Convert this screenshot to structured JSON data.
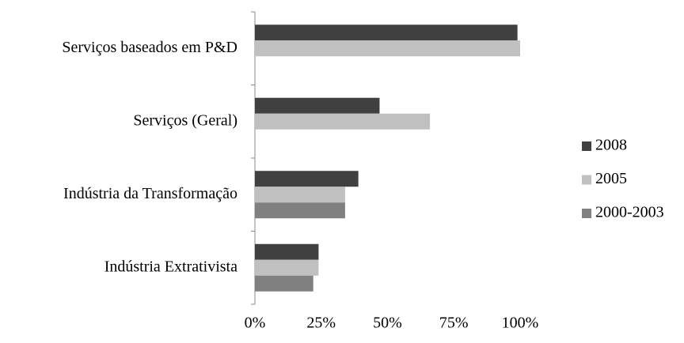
{
  "chart_data": {
    "type": "hbar",
    "categories": [
      "Serviços baseados em P&D",
      "Serviços (Geral)",
      "Indústria da Transformação",
      "Indústria Extrativista"
    ],
    "series": [
      {
        "name": "2008",
        "color": "#404040",
        "values": [
          99,
          47,
          39,
          24
        ]
      },
      {
        "name": "2005",
        "color": "#c0c0c0",
        "values": [
          100,
          66,
          34,
          24
        ]
      },
      {
        "name": "2000-2003",
        "color": "#808080",
        "values": [
          null,
          null,
          34,
          22
        ]
      }
    ],
    "xlim": [
      0,
      100
    ],
    "xticks": [
      {
        "value": 0,
        "label": "0%"
      },
      {
        "value": 25,
        "label": "25%"
      },
      {
        "value": 50,
        "label": "50%"
      },
      {
        "value": 75,
        "label": "75%"
      },
      {
        "value": 100,
        "label": "100%"
      }
    ],
    "legend": "right"
  }
}
